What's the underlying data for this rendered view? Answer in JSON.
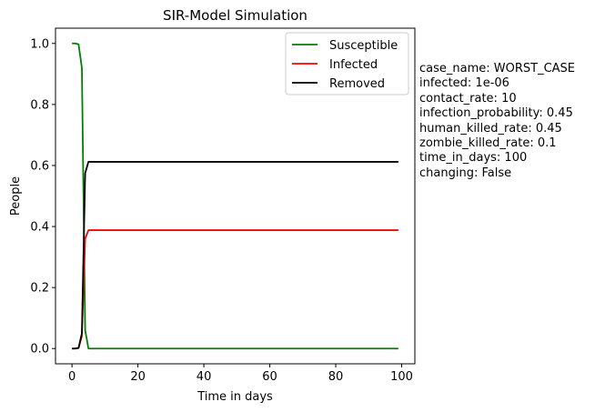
{
  "chart_data": {
    "type": "line",
    "title": "SIR-Model Simulation",
    "xlabel": "Time in days",
    "ylabel": "People",
    "xlim": [
      -5,
      104
    ],
    "ylim": [
      -0.05,
      1.05
    ],
    "xticks": [
      0,
      20,
      40,
      60,
      80,
      100
    ],
    "yticks": [
      0.0,
      0.2,
      0.4,
      0.6,
      0.8,
      1.0
    ],
    "xtick_labels": [
      "0",
      "20",
      "40",
      "60",
      "80",
      "100"
    ],
    "ytick_labels": [
      "0.0",
      "0.2",
      "0.4",
      "0.6",
      "0.8",
      "1.0"
    ],
    "grid": false,
    "legend_position": "top-right",
    "series": [
      {
        "name": "Susceptible",
        "color": "#008000",
        "x": [
          0,
          1,
          2,
          3,
          4,
          5,
          99
        ],
        "y": [
          1.0,
          1.0,
          0.997,
          0.92,
          0.06,
          0.0,
          0.0
        ]
      },
      {
        "name": "Infected",
        "color": "#ff0000",
        "x": [
          0,
          1,
          2,
          3,
          4,
          5,
          99
        ],
        "y": [
          0.0,
          0.0,
          0.002,
          0.04,
          0.36,
          0.388,
          0.388
        ]
      },
      {
        "name": "Removed",
        "color": "#000000",
        "x": [
          0,
          1,
          2,
          3,
          4,
          5,
          99
        ],
        "y": [
          0.0,
          0.0,
          0.002,
          0.05,
          0.575,
          0.612,
          0.612
        ]
      }
    ]
  },
  "parameters": [
    "case_name: WORST_CASE",
    "infected: 1e-06",
    "contact_rate: 10",
    "infection_probability: 0.45",
    "human_killed_rate: 0.45",
    "zombie_killed_rate: 0.1",
    "time_in_days: 100",
    "changing: False"
  ]
}
